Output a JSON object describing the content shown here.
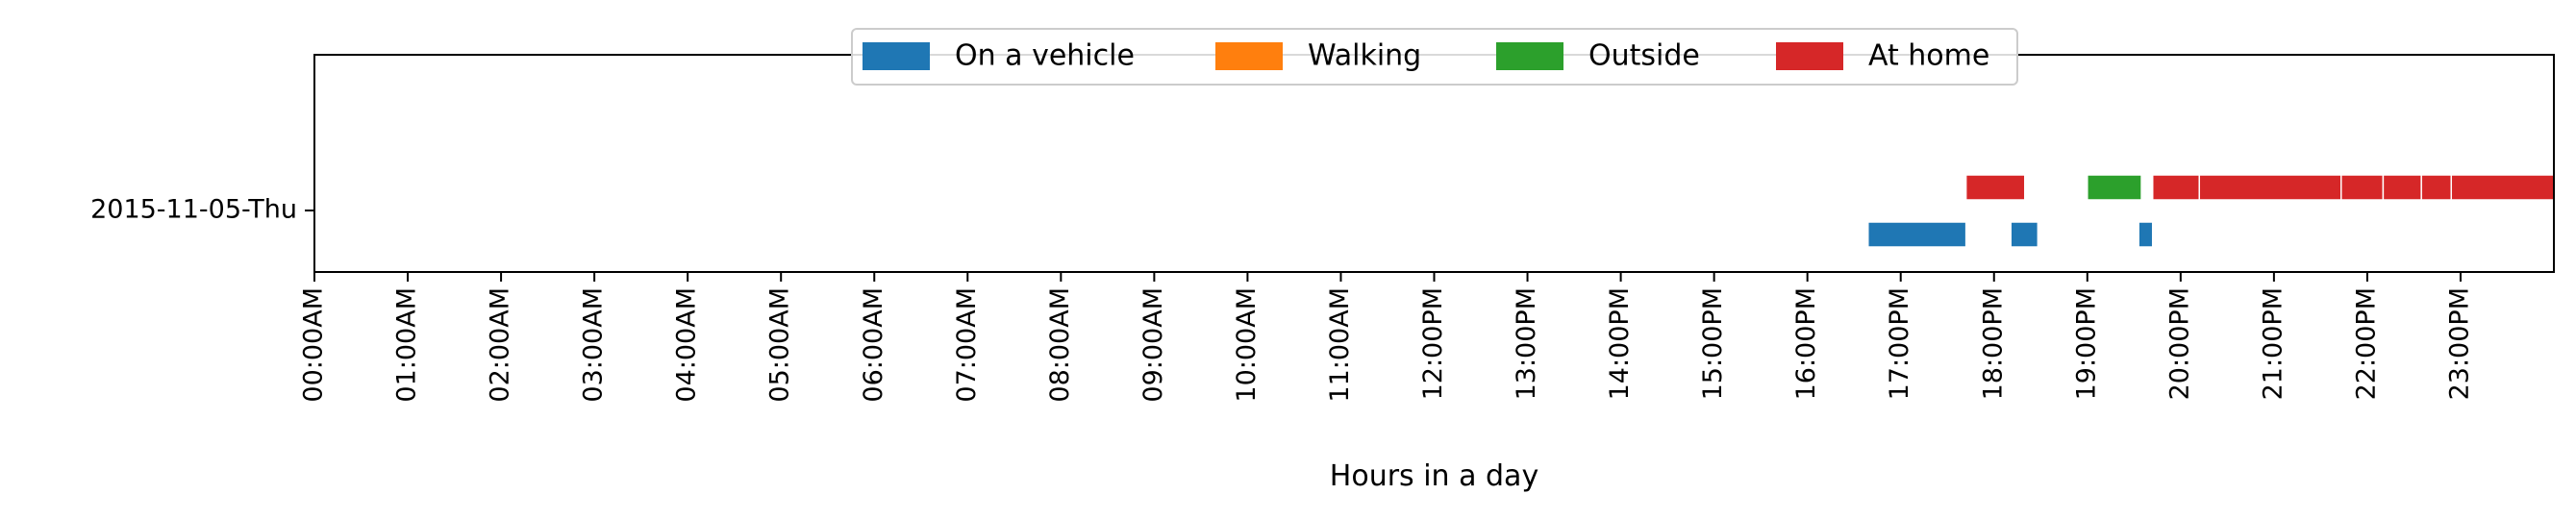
{
  "chart_data": {
    "type": "timeline",
    "xlabel": "Hours in a day",
    "xlim": [
      0,
      24
    ],
    "x_unit": "hours",
    "y_categories": [
      "2015-11-05-Thu"
    ],
    "x_ticks": [
      {
        "value": 0,
        "label": "00:00AM"
      },
      {
        "value": 1,
        "label": "01:00AM"
      },
      {
        "value": 2,
        "label": "02:00AM"
      },
      {
        "value": 3,
        "label": "03:00AM"
      },
      {
        "value": 4,
        "label": "04:00AM"
      },
      {
        "value": 5,
        "label": "05:00AM"
      },
      {
        "value": 6,
        "label": "06:00AM"
      },
      {
        "value": 7,
        "label": "07:00AM"
      },
      {
        "value": 8,
        "label": "08:00AM"
      },
      {
        "value": 9,
        "label": "09:00AM"
      },
      {
        "value": 10,
        "label": "10:00AM"
      },
      {
        "value": 11,
        "label": "11:00AM"
      },
      {
        "value": 12,
        "label": "12:00PM"
      },
      {
        "value": 13,
        "label": "13:00PM"
      },
      {
        "value": 14,
        "label": "14:00PM"
      },
      {
        "value": 15,
        "label": "15:00PM"
      },
      {
        "value": 16,
        "label": "16:00PM"
      },
      {
        "value": 17,
        "label": "17:00PM"
      },
      {
        "value": 18,
        "label": "18:00PM"
      },
      {
        "value": 19,
        "label": "19:00PM"
      },
      {
        "value": 20,
        "label": "20:00PM"
      },
      {
        "value": 21,
        "label": "21:00PM"
      },
      {
        "value": 22,
        "label": "22:00PM"
      },
      {
        "value": 23,
        "label": "23:00PM"
      }
    ],
    "legend": {
      "placement": "upper-center",
      "entries": [
        {
          "name": "On a vehicle",
          "color": "#1f77b4"
        },
        {
          "name": "Walking",
          "color": "#ff7f0e"
        },
        {
          "name": "Outside",
          "color": "#2ca02c"
        },
        {
          "name": "At home",
          "color": "#d62728"
        }
      ]
    },
    "series": [
      {
        "name": "On a vehicle",
        "color": "#1f77b4",
        "row": "2015-11-05-Thu",
        "level": "lower",
        "intervals": [
          [
            16.65,
            17.7
          ],
          [
            18.18,
            18.47
          ],
          [
            19.55,
            19.7
          ]
        ]
      },
      {
        "name": "Walking",
        "color": "#ff7f0e",
        "row": "2015-11-05-Thu",
        "level": "upper",
        "intervals": []
      },
      {
        "name": "Outside",
        "color": "#2ca02c",
        "row": "2015-11-05-Thu",
        "level": "upper",
        "intervals": [
          [
            19.0,
            19.58
          ]
        ]
      },
      {
        "name": "At home",
        "color": "#d62728",
        "row": "2015-11-05-Thu",
        "level": "upper",
        "intervals": [
          [
            17.7,
            18.33
          ],
          [
            19.7,
            20.2
          ],
          [
            20.2,
            21.72
          ],
          [
            21.72,
            22.17
          ],
          [
            22.17,
            22.58
          ],
          [
            22.58,
            22.9
          ],
          [
            22.9,
            24.0
          ]
        ]
      }
    ]
  }
}
